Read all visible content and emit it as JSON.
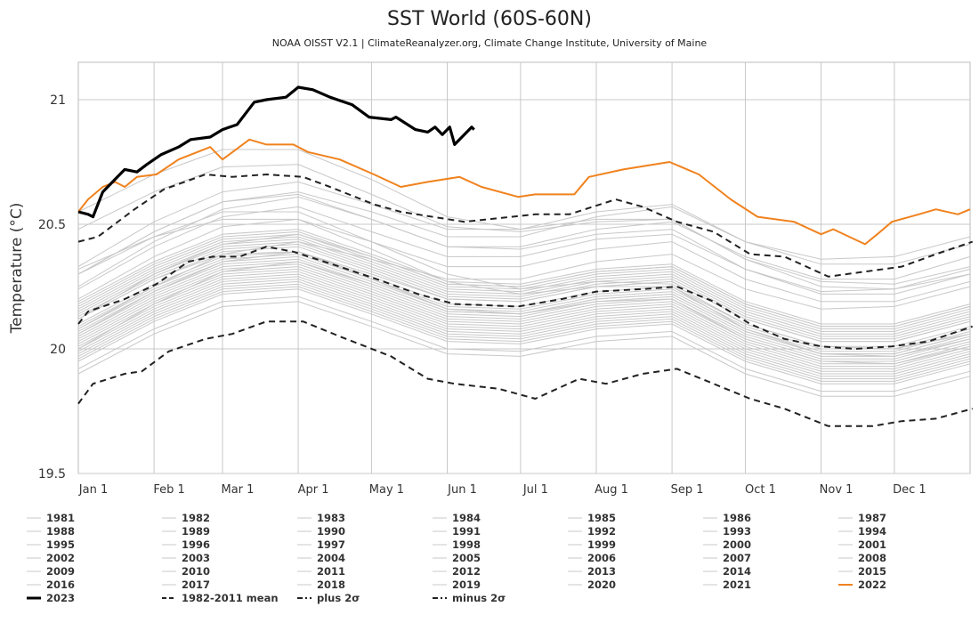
{
  "chart_data": {
    "type": "line",
    "title": "SST World (60S-60N)",
    "subtitle": "NOAA OISST V2.1 | ClimateReanalyzer.org, Climate Change Institute, University of Maine",
    "ylabel": "Temperature (°C)",
    "xlabel": "",
    "ylim": [
      19.5,
      21.15
    ],
    "xlim_day_of_year": [
      0,
      365
    ],
    "yticks": [
      19.5,
      20,
      20.5,
      21
    ],
    "xticks": [
      {
        "label": "Jan 1",
        "day": 0
      },
      {
        "label": "Feb 1",
        "day": 31
      },
      {
        "label": "Mar 1",
        "day": 59
      },
      {
        "label": "Apr 1",
        "day": 90
      },
      {
        "label": "May 1",
        "day": 120
      },
      {
        "label": "Jun 1",
        "day": 151
      },
      {
        "label": "Jul 1",
        "day": 181
      },
      {
        "label": "Aug 1",
        "day": 212
      },
      {
        "label": "Sep 1",
        "day": 243
      },
      {
        "label": "Oct 1",
        "day": 273
      },
      {
        "label": "Nov 1",
        "day": 304
      },
      {
        "label": "Dec 1",
        "day": 334
      }
    ],
    "grid": true,
    "legend_placement": "bottom",
    "colors": {
      "year": "#c8c8c8",
      "2023": "#000000",
      "2022": "#f0821e",
      "stats": "#222222"
    },
    "gray_years_days": [
      0,
      31,
      59,
      90,
      120,
      151,
      181,
      212,
      243,
      273,
      304,
      334,
      365
    ],
    "gray_years": [
      {
        "name": "1981",
        "values": [
          19.98,
          20.14,
          20.25,
          20.27,
          20.17,
          20.06,
          20.05,
          20.11,
          20.13,
          19.98,
          19.89,
          19.89,
          19.97
        ]
      },
      {
        "name": "1982",
        "values": [
          19.95,
          20.11,
          20.22,
          20.24,
          20.14,
          20.03,
          20.02,
          20.08,
          20.1,
          19.95,
          19.86,
          19.86,
          19.94
        ]
      },
      {
        "name": "1983",
        "values": [
          20.05,
          20.21,
          20.32,
          20.34,
          20.24,
          20.13,
          20.12,
          20.18,
          20.2,
          20.05,
          19.96,
          19.96,
          20.04
        ]
      },
      {
        "name": "1984",
        "values": [
          19.92,
          20.08,
          20.19,
          20.21,
          20.11,
          20.0,
          19.99,
          20.05,
          20.07,
          19.92,
          19.83,
          19.83,
          19.91
        ]
      },
      {
        "name": "1985",
        "values": [
          19.9,
          20.06,
          20.17,
          20.19,
          20.09,
          19.98,
          19.97,
          20.03,
          20.05,
          19.9,
          19.81,
          19.81,
          19.89
        ]
      },
      {
        "name": "1986",
        "values": [
          19.96,
          20.12,
          20.23,
          20.25,
          20.15,
          20.04,
          20.03,
          20.09,
          20.11,
          19.96,
          19.87,
          19.87,
          19.95
        ]
      },
      {
        "name": "1987",
        "values": [
          20.08,
          20.24,
          20.35,
          20.37,
          20.27,
          20.16,
          20.15,
          20.21,
          20.23,
          20.08,
          19.99,
          19.99,
          20.07
        ]
      },
      {
        "name": "1988",
        "values": [
          20.04,
          20.2,
          20.31,
          20.33,
          20.23,
          20.12,
          20.11,
          20.17,
          20.19,
          20.04,
          19.95,
          19.95,
          20.03
        ]
      },
      {
        "name": "1989",
        "values": [
          19.97,
          20.13,
          20.24,
          20.26,
          20.16,
          20.05,
          20.04,
          20.1,
          20.12,
          19.97,
          19.88,
          19.88,
          19.96
        ]
      },
      {
        "name": "1990",
        "values": [
          20.06,
          20.22,
          20.33,
          20.35,
          20.25,
          20.14,
          20.13,
          20.19,
          20.21,
          20.06,
          19.97,
          19.97,
          20.05
        ]
      },
      {
        "name": "1991",
        "values": [
          20.03,
          20.19,
          20.3,
          20.32,
          20.22,
          20.11,
          20.1,
          20.16,
          20.18,
          20.03,
          19.94,
          19.94,
          20.02
        ]
      },
      {
        "name": "1992",
        "values": [
          19.99,
          20.15,
          20.26,
          20.28,
          20.18,
          20.07,
          20.06,
          20.12,
          20.14,
          19.99,
          19.9,
          19.9,
          19.98
        ]
      },
      {
        "name": "1993",
        "values": [
          20.01,
          20.17,
          20.28,
          20.3,
          20.2,
          20.09,
          20.08,
          20.14,
          20.16,
          20.01,
          19.92,
          19.92,
          20.0
        ]
      },
      {
        "name": "1994",
        "values": [
          20.09,
          20.25,
          20.36,
          20.38,
          20.28,
          20.17,
          20.16,
          20.22,
          20.24,
          20.09,
          20.0,
          20.0,
          20.08
        ]
      },
      {
        "name": "1995",
        "values": [
          20.07,
          20.23,
          20.34,
          20.36,
          20.26,
          20.15,
          20.14,
          20.2,
          20.22,
          20.07,
          19.98,
          19.98,
          20.06
        ]
      },
      {
        "name": "1996",
        "values": [
          20.02,
          20.18,
          20.29,
          20.31,
          20.21,
          20.1,
          20.09,
          20.15,
          20.17,
          20.02,
          19.93,
          19.93,
          20.01
        ]
      },
      {
        "name": "1997",
        "values": [
          20.15,
          20.31,
          20.42,
          20.44,
          20.34,
          20.23,
          20.22,
          20.28,
          20.3,
          20.15,
          20.06,
          20.06,
          20.14
        ]
      },
      {
        "name": "1998",
        "values": [
          20.3,
          20.45,
          20.55,
          20.55,
          20.43,
          20.3,
          20.24,
          20.27,
          20.26,
          20.1,
          20.01,
          20.0,
          20.06
        ]
      },
      {
        "name": "1999",
        "values": [
          20.0,
          20.16,
          20.27,
          20.29,
          20.19,
          20.08,
          20.07,
          20.13,
          20.15,
          20.0,
          19.91,
          19.91,
          19.99
        ]
      },
      {
        "name": "2000",
        "values": [
          20.1,
          20.26,
          20.37,
          20.39,
          20.29,
          20.18,
          20.17,
          20.23,
          20.25,
          20.1,
          20.01,
          20.01,
          20.09
        ]
      },
      {
        "name": "2001",
        "values": [
          20.13,
          20.29,
          20.4,
          20.42,
          20.32,
          20.21,
          20.2,
          20.26,
          20.28,
          20.13,
          20.04,
          20.04,
          20.12
        ]
      },
      {
        "name": "2002",
        "values": [
          20.16,
          20.32,
          20.43,
          20.45,
          20.35,
          20.24,
          20.23,
          20.29,
          20.31,
          20.16,
          20.07,
          20.07,
          20.15
        ]
      },
      {
        "name": "2003",
        "values": [
          20.17,
          20.33,
          20.44,
          20.46,
          20.36,
          20.25,
          20.24,
          20.3,
          20.32,
          20.17,
          20.08,
          20.08,
          20.16
        ]
      },
      {
        "name": "2004",
        "values": [
          20.14,
          20.3,
          20.41,
          20.43,
          20.33,
          20.22,
          20.21,
          20.27,
          20.29,
          20.14,
          20.05,
          20.05,
          20.13
        ]
      },
      {
        "name": "2005",
        "values": [
          20.19,
          20.35,
          20.46,
          20.48,
          20.38,
          20.27,
          20.26,
          20.32,
          20.34,
          20.19,
          20.1,
          20.1,
          20.18
        ]
      },
      {
        "name": "2006",
        "values": [
          20.12,
          20.28,
          20.39,
          20.41,
          20.31,
          20.2,
          20.19,
          20.25,
          20.27,
          20.12,
          20.03,
          20.03,
          20.11
        ]
      },
      {
        "name": "2007",
        "values": [
          20.12,
          20.28,
          20.38,
          20.39,
          20.28,
          20.16,
          20.14,
          20.19,
          20.2,
          20.04,
          19.95,
          19.94,
          20.01
        ]
      },
      {
        "name": "2008",
        "values": [
          20.0,
          20.18,
          20.31,
          20.35,
          20.26,
          20.15,
          20.14,
          20.2,
          20.22,
          20.07,
          19.98,
          19.98,
          20.06
        ]
      },
      {
        "name": "2009",
        "values": [
          20.08,
          20.25,
          20.38,
          20.43,
          20.36,
          20.28,
          20.28,
          20.35,
          20.38,
          20.24,
          20.16,
          20.17,
          20.25
        ]
      },
      {
        "name": "2010",
        "values": [
          20.32,
          20.45,
          20.52,
          20.52,
          20.4,
          20.27,
          20.22,
          20.25,
          20.25,
          20.08,
          19.98,
          19.97,
          20.04
        ]
      },
      {
        "name": "2011",
        "values": [
          20.06,
          20.23,
          20.35,
          20.39,
          20.3,
          20.2,
          20.19,
          20.25,
          20.27,
          20.12,
          20.03,
          20.03,
          20.11
        ]
      },
      {
        "name": "2012",
        "values": [
          20.12,
          20.3,
          20.42,
          20.46,
          20.37,
          20.26,
          20.25,
          20.31,
          20.33,
          20.18,
          20.09,
          20.09,
          20.17
        ]
      },
      {
        "name": "2013",
        "values": [
          20.18,
          20.34,
          20.45,
          20.47,
          20.37,
          20.26,
          20.25,
          20.31,
          20.33,
          20.18,
          20.09,
          20.09,
          20.17
        ]
      },
      {
        "name": "2014",
        "values": [
          20.2,
          20.37,
          20.49,
          20.52,
          20.43,
          20.33,
          20.33,
          20.4,
          20.43,
          20.28,
          20.19,
          20.19,
          20.27
        ]
      },
      {
        "name": "2015",
        "values": [
          20.3,
          20.47,
          20.59,
          20.63,
          20.55,
          20.45,
          20.45,
          20.53,
          20.57,
          20.43,
          20.36,
          20.37,
          20.45
        ]
      },
      {
        "name": "2016",
        "values": [
          20.55,
          20.7,
          20.8,
          20.8,
          20.68,
          20.53,
          20.48,
          20.52,
          20.52,
          20.36,
          20.27,
          20.26,
          20.33
        ]
      },
      {
        "name": "2017",
        "values": [
          20.3,
          20.47,
          20.59,
          20.62,
          20.52,
          20.41,
          20.4,
          20.46,
          20.48,
          20.32,
          20.22,
          20.22,
          20.3
        ]
      },
      {
        "name": "2018",
        "values": [
          20.24,
          20.41,
          20.53,
          20.57,
          20.47,
          20.37,
          20.37,
          20.44,
          20.46,
          20.32,
          20.23,
          20.24,
          20.32
        ]
      },
      {
        "name": "2019",
        "values": [
          20.33,
          20.51,
          20.63,
          20.67,
          20.58,
          20.48,
          20.48,
          20.55,
          20.58,
          20.43,
          20.34,
          20.34,
          20.42
        ]
      },
      {
        "name": "2020",
        "values": [
          20.48,
          20.63,
          20.73,
          20.74,
          20.62,
          20.49,
          20.47,
          20.51,
          20.52,
          20.36,
          20.25,
          20.24,
          20.3
        ]
      },
      {
        "name": "2021",
        "values": [
          20.25,
          20.43,
          20.56,
          20.61,
          20.52,
          20.41,
          20.41,
          20.48,
          20.51,
          20.37,
          20.28,
          20.28,
          20.37
        ]
      }
    ],
    "series": [
      {
        "name": "2022",
        "style": "solid-orange",
        "days": [
          0,
          4,
          10,
          15,
          19,
          24,
          32,
          41,
          54,
          59,
          70,
          77,
          88,
          94,
          107,
          121,
          132,
          143,
          156,
          165,
          180,
          187,
          203,
          209,
          223,
          242,
          254,
          267,
          278,
          293,
          304,
          309,
          322,
          327,
          333,
          344,
          351,
          360,
          365
        ],
        "values": [
          20.55,
          20.6,
          20.65,
          20.67,
          20.65,
          20.69,
          20.7,
          20.76,
          20.81,
          20.76,
          20.84,
          20.82,
          20.82,
          20.79,
          20.76,
          20.7,
          20.65,
          20.67,
          20.69,
          20.65,
          20.61,
          20.62,
          20.62,
          20.69,
          20.72,
          20.75,
          20.7,
          20.6,
          20.53,
          20.51,
          20.46,
          20.48,
          20.42,
          20.46,
          20.51,
          20.54,
          20.56,
          20.54,
          20.56
        ]
      },
      {
        "name": "1982-2011 mean",
        "style": "dashed",
        "days": [
          0,
          4,
          19,
          32,
          45,
          55,
          66,
          77,
          88,
          107,
          125,
          139,
          154,
          180,
          198,
          212,
          231,
          245,
          260,
          275,
          289,
          304,
          318,
          333,
          348,
          366
        ],
        "values": [
          20.1,
          20.15,
          20.2,
          20.26,
          20.35,
          20.37,
          20.37,
          20.41,
          20.39,
          20.33,
          20.27,
          20.22,
          20.18,
          20.17,
          20.2,
          20.23,
          20.24,
          20.25,
          20.19,
          20.1,
          20.04,
          20.01,
          20.0,
          20.01,
          20.03,
          20.09
        ]
      },
      {
        "name": "plus 2σ",
        "style": "dash-dot",
        "days": [
          0,
          8,
          23,
          35,
          52,
          63,
          77,
          92,
          103,
          121,
          132,
          158,
          187,
          201,
          220,
          231,
          245,
          260,
          275,
          289,
          307,
          322,
          337,
          351,
          366
        ],
        "values": [
          20.43,
          20.45,
          20.56,
          20.64,
          20.7,
          20.69,
          20.7,
          20.69,
          20.65,
          20.58,
          20.55,
          20.51,
          20.54,
          20.54,
          20.6,
          20.57,
          20.51,
          20.47,
          20.38,
          20.37,
          20.29,
          20.31,
          20.33,
          20.38,
          20.43
        ]
      },
      {
        "name": "minus 2σ",
        "style": "dash-dot",
        "days": [
          0,
          6,
          19,
          26,
          37,
          52,
          63,
          77,
          92,
          107,
          128,
          143,
          154,
          172,
          187,
          205,
          216,
          231,
          245,
          260,
          275,
          289,
          307,
          325,
          337,
          351,
          366
        ],
        "values": [
          19.78,
          19.86,
          19.9,
          19.91,
          19.99,
          20.04,
          20.06,
          20.11,
          20.11,
          20.05,
          19.97,
          19.88,
          19.86,
          19.84,
          19.8,
          19.88,
          19.86,
          19.9,
          19.92,
          19.86,
          19.8,
          19.76,
          19.69,
          19.69,
          19.71,
          19.72,
          19.76
        ]
      },
      {
        "name": "2023",
        "style": "solid-black-thick",
        "days": [
          0,
          4,
          6,
          10,
          13,
          19,
          24,
          28,
          34,
          41,
          46,
          54,
          59,
          65,
          72,
          77,
          85,
          90,
          96,
          103,
          112,
          119,
          128,
          130,
          138,
          143,
          146,
          149,
          152,
          154,
          158,
          161,
          162
        ],
        "values": [
          20.55,
          20.54,
          20.53,
          20.63,
          20.66,
          20.72,
          20.71,
          20.74,
          20.78,
          20.81,
          20.84,
          20.85,
          20.88,
          20.9,
          20.99,
          21.0,
          21.01,
          21.05,
          21.04,
          21.01,
          20.98,
          20.93,
          20.92,
          20.93,
          20.88,
          20.87,
          20.89,
          20.86,
          20.89,
          20.82,
          20.86,
          20.89,
          20.88
        ]
      }
    ],
    "legend": [
      "1981",
      "1982",
      "1983",
      "1984",
      "1985",
      "1986",
      "1987",
      "1988",
      "1989",
      "1990",
      "1991",
      "1992",
      "1993",
      "1994",
      "1995",
      "1996",
      "1997",
      "1998",
      "1999",
      "2000",
      "2001",
      "2002",
      "2003",
      "2004",
      "2005",
      "2006",
      "2007",
      "2008",
      "2009",
      "2010",
      "2011",
      "2012",
      "2013",
      "2014",
      "2015",
      "2016",
      "2017",
      "2018",
      "2019",
      "2020",
      "2021",
      "2022",
      "2023",
      "1982-2011 mean",
      "plus 2σ",
      "minus 2σ"
    ]
  }
}
